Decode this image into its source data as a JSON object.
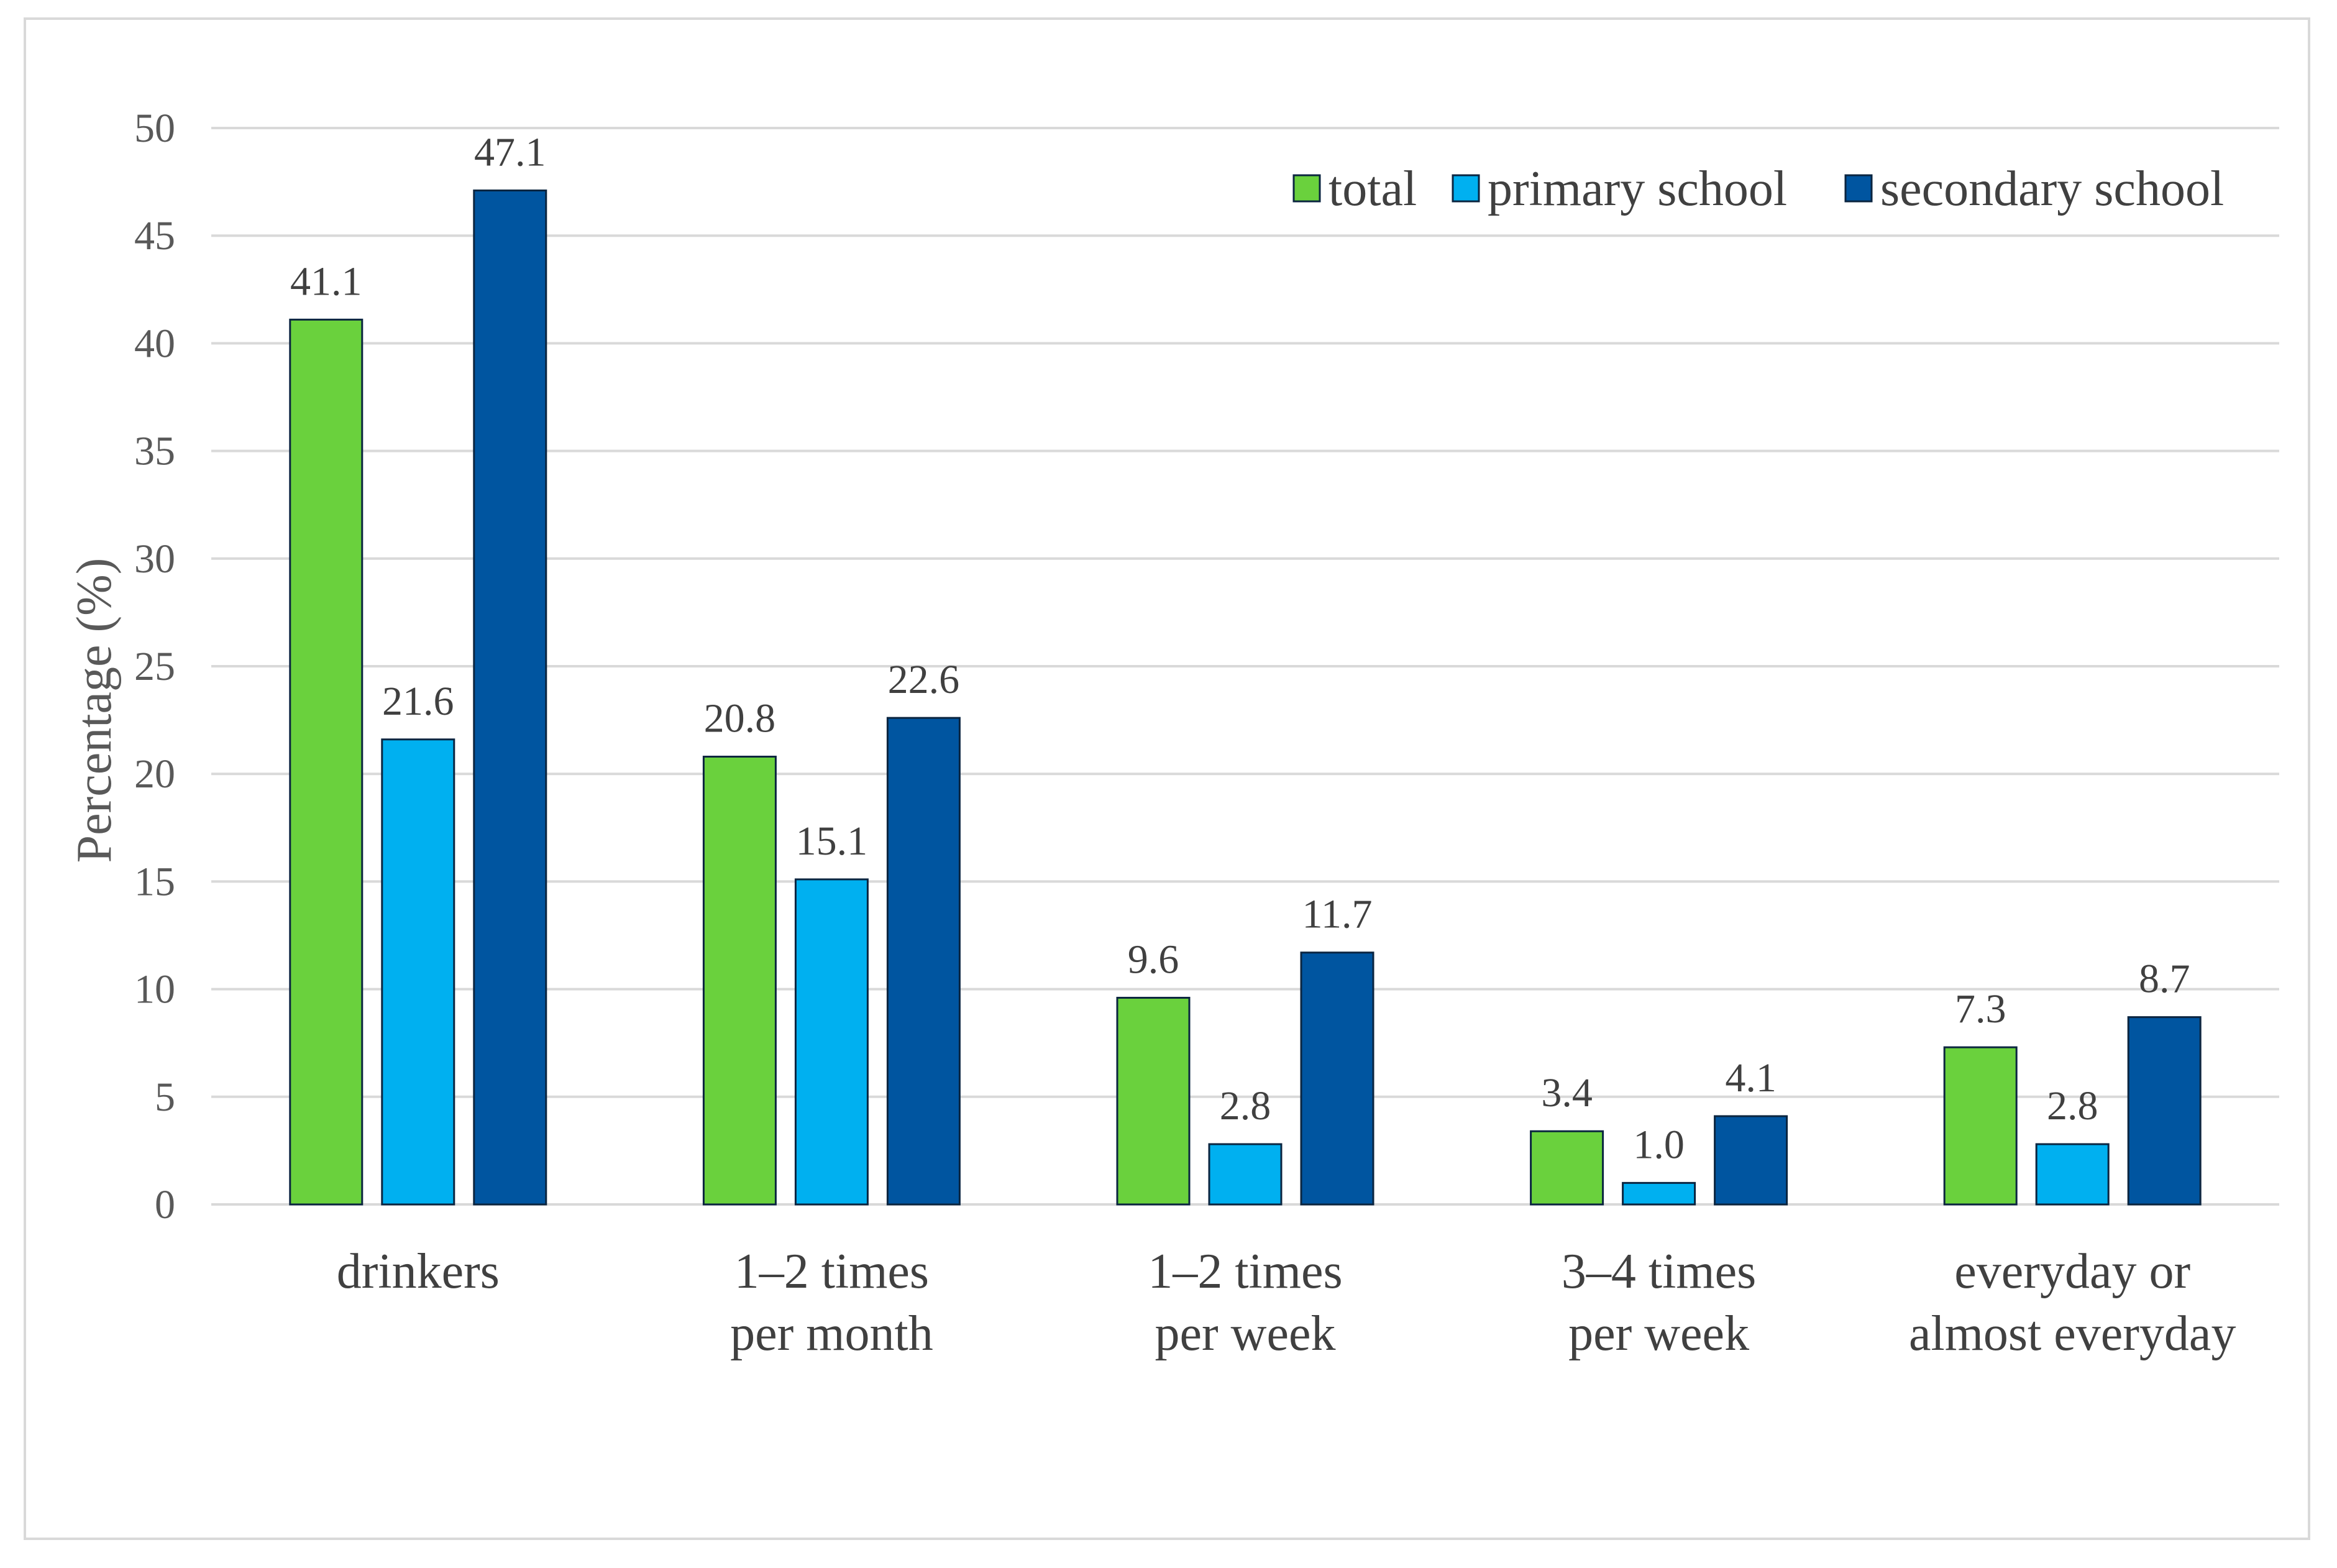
{
  "chart_data": {
    "type": "bar",
    "categories": [
      [
        "drinkers"
      ],
      [
        "1–2 times",
        "per month"
      ],
      [
        "1–2 times",
        "per week"
      ],
      [
        "3–4 times",
        "per week"
      ],
      [
        "everyday or",
        "almost everyday"
      ]
    ],
    "series": [
      {
        "name": "total",
        "color": "#6ad13d",
        "values": [
          41.1,
          20.8,
          9.6,
          3.4,
          7.3
        ],
        "labels": [
          "41.1",
          "20.8",
          "9.6",
          "3.4",
          "7.3"
        ]
      },
      {
        "name": "primary school",
        "color": "#00b0f0",
        "values": [
          21.6,
          15.1,
          2.8,
          1.0,
          2.8
        ],
        "labels": [
          "21.6",
          "15.1",
          "2.8",
          "1.0",
          "2.8"
        ]
      },
      {
        "name": "secondary school",
        "color": "#0055a0",
        "values": [
          47.1,
          22.6,
          11.7,
          4.1,
          8.7
        ],
        "labels": [
          "47.1",
          "22.6",
          "11.7",
          "4.1",
          "8.7"
        ]
      }
    ],
    "ylabel": "Percentage (%)",
    "ylim": [
      0,
      50
    ],
    "yticks": [
      0,
      5,
      10,
      15,
      20,
      25,
      30,
      35,
      40,
      45,
      50
    ],
    "grid": true,
    "legend_position": "top-right"
  }
}
